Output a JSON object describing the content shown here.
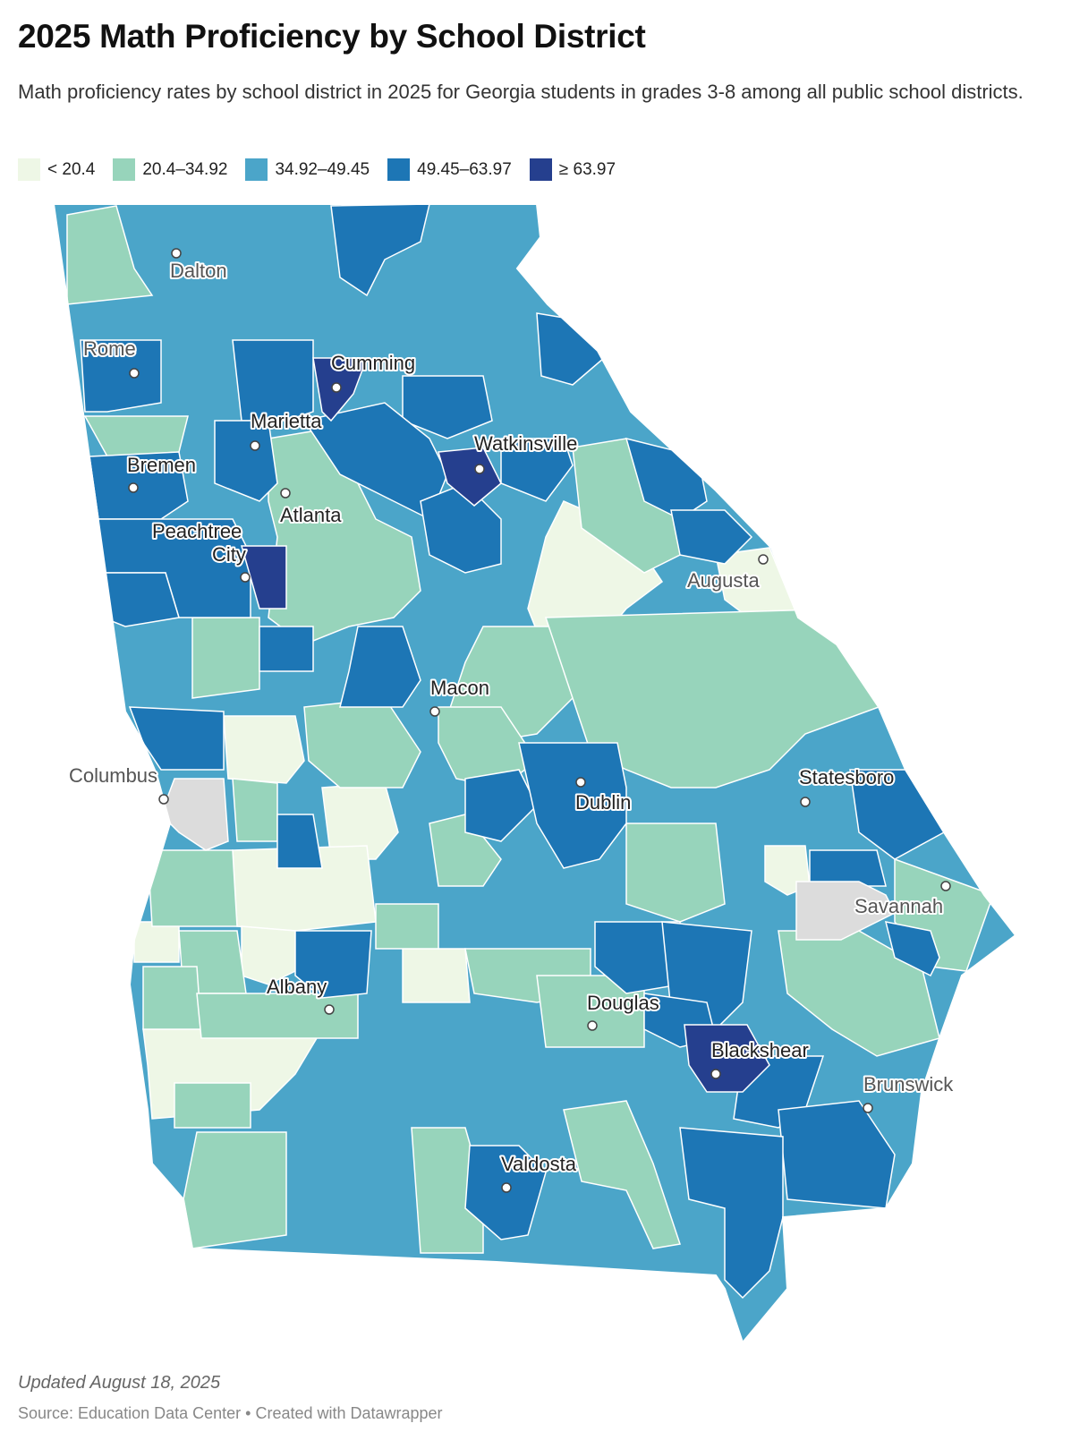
{
  "title": "2025 Math Proficiency by School District",
  "subtitle": "Math proficiency rates by school district in 2025 for Georgia students in grades 3-8 among all public school districts.",
  "legend": [
    {
      "label": "< 20.4",
      "color": "#eef7e6"
    },
    {
      "label": "20.4–34.92",
      "color": "#97d4bb"
    },
    {
      "label": "34.92–49.45",
      "color": "#4ba5c9"
    },
    {
      "label": "49.45–63.97",
      "color": "#1d76b5"
    },
    {
      "label": "≥ 63.97",
      "color": "#253f8e"
    }
  ],
  "no_data_color": "#dcdcdc",
  "cities": [
    {
      "name": "Dalton"
    },
    {
      "name": "Rome"
    },
    {
      "name": "Cumming"
    },
    {
      "name": "Marietta"
    },
    {
      "name": "Watkinsville"
    },
    {
      "name": "Bremen"
    },
    {
      "name": "Atlanta"
    },
    {
      "name": "Peachtree"
    },
    {
      "name": "City"
    },
    {
      "name": "Augusta"
    },
    {
      "name": "Macon"
    },
    {
      "name": "Columbus"
    },
    {
      "name": "Statesboro"
    },
    {
      "name": "Dublin"
    },
    {
      "name": "Savannah"
    },
    {
      "name": "Albany"
    },
    {
      "name": "Douglas"
    },
    {
      "name": "Blackshear"
    },
    {
      "name": "Brunswick"
    },
    {
      "name": "Valdosta"
    }
  ],
  "footer": {
    "updated": "Updated August 18, 2025",
    "source": "Source: Education Data Center • Created with Datawrapper"
  }
}
